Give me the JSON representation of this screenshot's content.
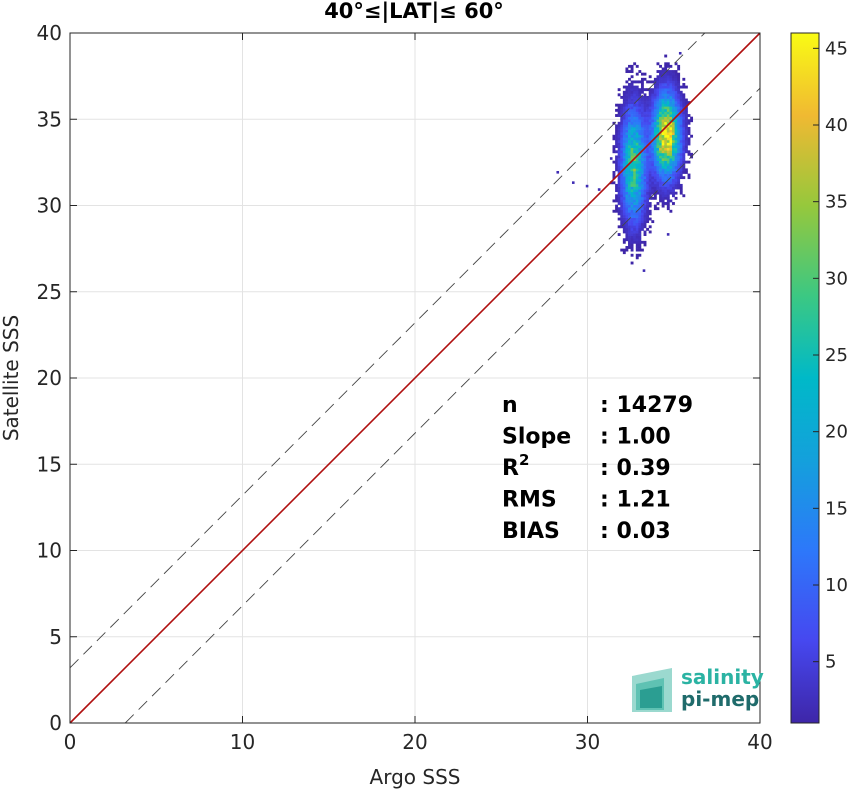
{
  "chart_data": {
    "type": "heatmap",
    "title": "40°≤|LAT|≤ 60°",
    "xlabel": "Argo SSS",
    "ylabel": "Satellite SSS",
    "xlim": [
      0,
      40
    ],
    "ylim": [
      0,
      40
    ],
    "x_ticks": [
      "0",
      "10",
      "20",
      "30",
      "40"
    ],
    "y_ticks": [
      "0",
      "5",
      "10",
      "15",
      "20",
      "25",
      "30",
      "35",
      "40"
    ],
    "grid": true,
    "reference_lines": [
      {
        "name": "1:1 line",
        "slope": 1,
        "intercept": 0,
        "color": "#b01010",
        "style": "solid"
      },
      {
        "name": "upper bound",
        "slope": 1,
        "intercept": 3.2,
        "color": "#444444",
        "style": "dashed"
      },
      {
        "name": "lower bound",
        "slope": 1,
        "intercept": -3.2,
        "color": "#444444",
        "style": "dashed"
      }
    ],
    "density_clusters": [
      {
        "x_center": 32.6,
        "y_center": 32.3,
        "x_spread": 0.45,
        "y_spread": 2.0,
        "peak_count": 30
      },
      {
        "x_center": 34.5,
        "y_center": 34.0,
        "x_spread": 0.5,
        "y_spread": 1.5,
        "peak_count": 45
      }
    ],
    "colorbar": {
      "min": 1,
      "max": 46,
      "ticks": [
        "5",
        "10",
        "15",
        "20",
        "25",
        "30",
        "35",
        "40",
        "45"
      ],
      "colormap": "parula"
    },
    "stats": [
      {
        "label": "n",
        "value": ": 14279"
      },
      {
        "label": "Slope",
        "value": ": 1.00"
      },
      {
        "label": "R",
        "sup": "2",
        "value": ": 0.39"
      },
      {
        "label": "RMS",
        "value": ": 1.21"
      },
      {
        "label": "BIAS",
        "value": ": 0.03"
      }
    ]
  },
  "logo": {
    "line1": "salinity",
    "line2": "pi-mep",
    "color_line1": "#2bb3a3",
    "color_line2": "#1f6b6b"
  }
}
